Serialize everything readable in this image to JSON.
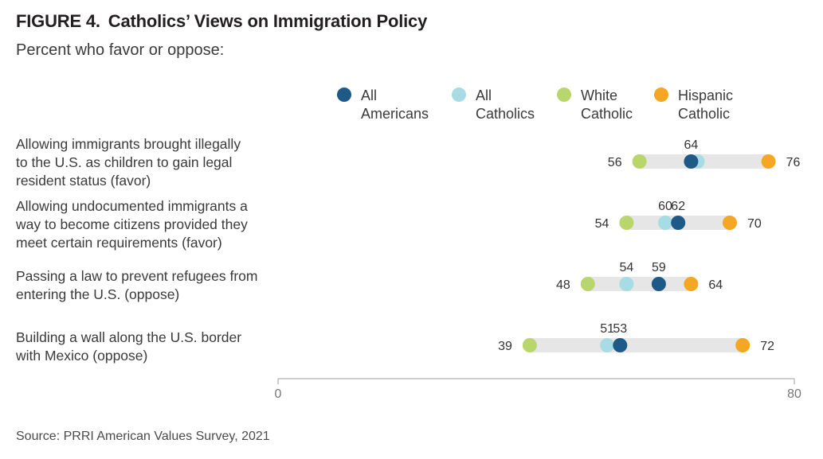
{
  "figure_label": "FIGURE 4.",
  "title": "Catholics’ Views on Immigration Policy",
  "subtitle": "Percent who favor or oppose:",
  "source": "Source: PRRI American Values Survey, 2021",
  "chart_data": {
    "type": "dot",
    "title": "Catholics’ Views on Immigration Policy",
    "subtitle": "Percent who favor or oppose:",
    "xlim": [
      0,
      80
    ],
    "x_ticks": [
      0,
      80
    ],
    "grid": false,
    "legend_position": "top",
    "series": [
      {
        "name_lines": [
          "All",
          "Americans"
        ],
        "color": "#1d5a87"
      },
      {
        "name_lines": [
          "All",
          "Catholics"
        ],
        "color": "#a8dce5"
      },
      {
        "name_lines": [
          "White",
          "Catholic"
        ],
        "color": "#b9d66d"
      },
      {
        "name_lines": [
          "Hispanic",
          "Catholic"
        ],
        "color": "#f5a623"
      }
    ],
    "categories": [
      {
        "label_lines": [
          "Allowing immigrants brought illegally",
          "to the U.S. as children to gain legal",
          "resident status (favor)"
        ],
        "values": [
          64,
          65,
          56,
          76
        ],
        "value_labels": [
          "64",
          "",
          "56",
          "76"
        ]
      },
      {
        "label_lines": [
          "Allowing undocumented immigrants a",
          "way to become citizens provided they",
          "meet certain requirements (favor)"
        ],
        "values": [
          62,
          60,
          54,
          70
        ],
        "value_labels": [
          "62",
          "60",
          "54",
          "70"
        ]
      },
      {
        "label_lines": [
          "Passing a law to prevent refugees from",
          "entering the U.S. (oppose)"
        ],
        "values": [
          59,
          54,
          48,
          64
        ],
        "value_labels": [
          "59",
          "54",
          "48",
          "64"
        ]
      },
      {
        "label_lines": [
          "Building a wall along the U.S. border",
          "with Mexico (oppose)"
        ],
        "values": [
          53,
          51,
          39,
          72
        ],
        "value_labels": [
          "53",
          "51",
          "39",
          "72"
        ]
      }
    ]
  }
}
